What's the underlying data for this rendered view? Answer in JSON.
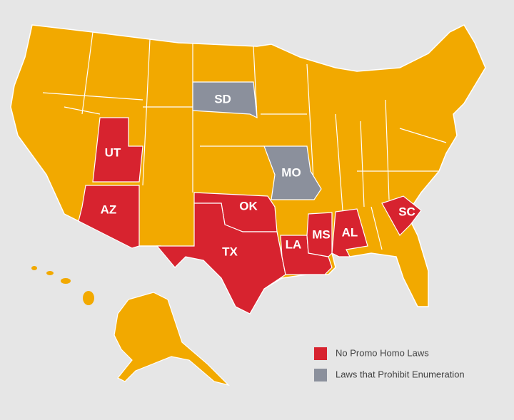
{
  "map": {
    "legend": [
      {
        "label": "No Promo Homo Laws",
        "color": "#d7232f",
        "states": [
          "UT",
          "AZ",
          "OK",
          "TX",
          "LA",
          "MS",
          "AL",
          "SC"
        ]
      },
      {
        "label": "Laws that Prohibit Enumeration",
        "color": "#8b909c",
        "states": [
          "SD",
          "MO"
        ]
      }
    ]
  }
}
